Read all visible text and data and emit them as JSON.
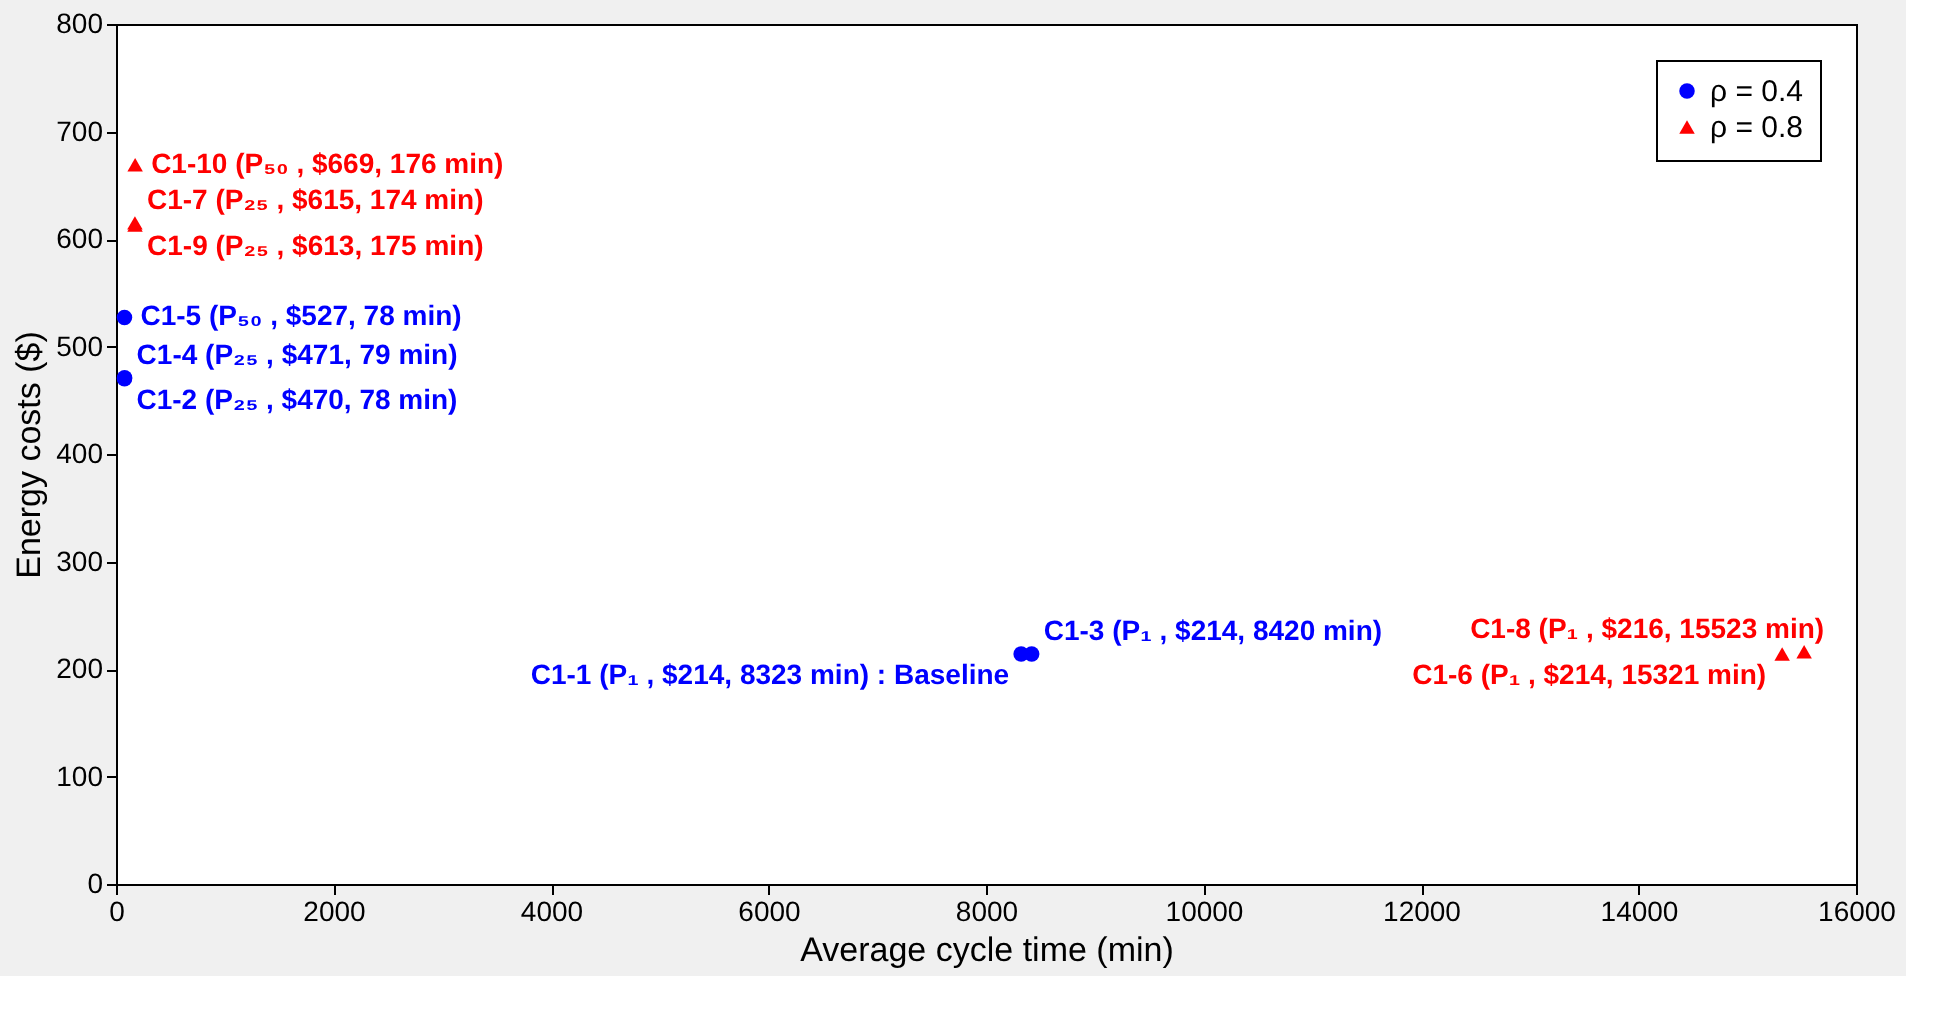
{
  "chart_data": {
    "type": "scatter",
    "xlabel": "Average cycle time (min)",
    "ylabel": "Energy costs ($)",
    "xlim": [
      0,
      16000
    ],
    "xticks": [
      0,
      2000,
      4000,
      6000,
      8000,
      10000,
      12000,
      14000,
      16000
    ],
    "ylim": [
      0,
      800
    ],
    "yticks": [
      0,
      100,
      200,
      300,
      400,
      500,
      600,
      700,
      800
    ],
    "grid": false,
    "legend": "top right",
    "series": [
      {
        "name": "ρ = 0.4",
        "color": "#0000ff",
        "marker": "circle",
        "x": [
          8323,
          78,
          8420,
          79,
          78
        ],
        "values": [
          214,
          470,
          214,
          471,
          527
        ]
      },
      {
        "name": "ρ = 0.8",
        "color": "#ff0000",
        "marker": "triangle",
        "x": [
          15321,
          174,
          15523,
          175,
          176
        ],
        "values": [
          214,
          615,
          216,
          613,
          669
        ]
      }
    ],
    "annotations": [
      {
        "text": "C1-1 (P₁ , $214, 8323 min) : Baseline",
        "x": 8323,
        "y": 214
      },
      {
        "text": "C1-2 (P₂₅ , $470, 78 min)",
        "x": 78,
        "y": 470
      },
      {
        "text": "C1-3 (P₁ , $214, 8420 min)",
        "x": 8420,
        "y": 214
      },
      {
        "text": "C1-4 (P₂₅ , $471, 79 min)",
        "x": 79,
        "y": 471
      },
      {
        "text": "C1-5 (P₅₀ , $527, 78 min)",
        "x": 78,
        "y": 527
      },
      {
        "text": "C1-6 (P₁ , $214, 15321 min)",
        "x": 15321,
        "y": 214
      },
      {
        "text": "C1-7 (P₂₅ , $615, 174 min)",
        "x": 174,
        "y": 615
      },
      {
        "text": "C1-8 (P₁ , $216, 15523 min)",
        "x": 15523,
        "y": 216
      },
      {
        "text": "C1-9 (P₂₅ , $613, 175 min)",
        "x": 175,
        "y": 613
      },
      {
        "text": "C1-10 (P₅₀ , $669, 176 min)",
        "x": 176,
        "y": 669
      }
    ]
  }
}
